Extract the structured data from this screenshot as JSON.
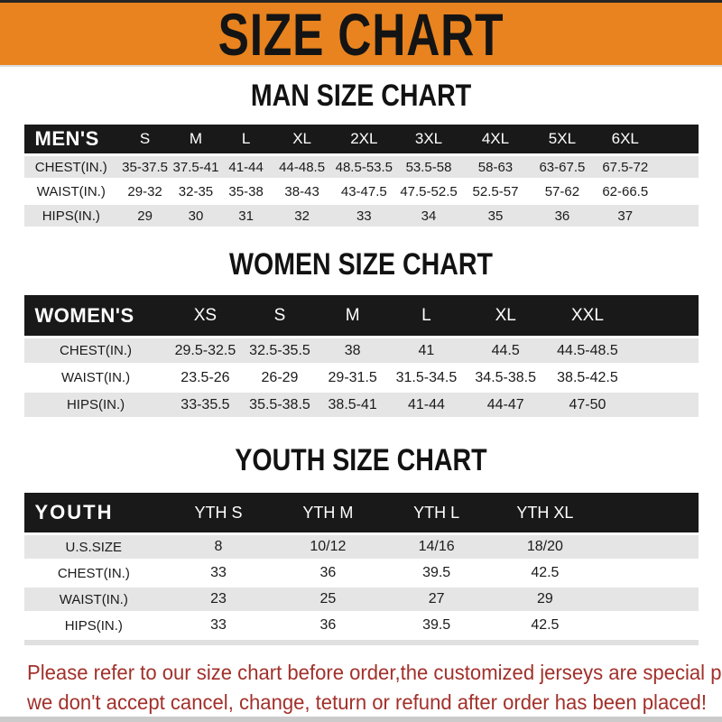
{
  "banner": {
    "title": "SIZE CHART"
  },
  "sections": [
    {
      "heading": "MAN SIZE CHART",
      "header_label": "MEN'S",
      "columns": [
        "S",
        "M",
        "L",
        "XL",
        "2XL",
        "3XL",
        "4XL",
        "5XL",
        "6XL"
      ],
      "rows": [
        {
          "label": "CHEST(IN.)",
          "values": [
            "35-37.5",
            "37.5-41",
            "41-44",
            "44-48.5",
            "48.5-53.5",
            "53.5-58",
            "58-63",
            "63-67.5",
            "67.5-72"
          ]
        },
        {
          "label": "WAIST(IN.)",
          "values": [
            "29-32",
            "32-35",
            "35-38",
            "38-43",
            "43-47.5",
            "47.5-52.5",
            "52.5-57",
            "57-62",
            "62-66.5"
          ]
        },
        {
          "label": "HIPS(IN.)",
          "values": [
            "29",
            "30",
            "31",
            "32",
            "33",
            "34",
            "35",
            "36",
            "37"
          ]
        }
      ]
    },
    {
      "heading": "WOMEN SIZE CHART",
      "header_label": "WOMEN'S",
      "columns": [
        "XS",
        "S",
        "M",
        "L",
        "XL",
        "XXL"
      ],
      "rows": [
        {
          "label": "CHEST(IN.)",
          "values": [
            "29.5-32.5",
            "32.5-35.5",
            "38",
            "41",
            "44.5",
            "44.5-48.5"
          ]
        },
        {
          "label": "WAIST(IN.)",
          "values": [
            "23.5-26",
            "26-29",
            "29-31.5",
            "31.5-34.5",
            "34.5-38.5",
            "38.5-42.5"
          ]
        },
        {
          "label": "HIPS(IN.)",
          "values": [
            "33-35.5",
            "35.5-38.5",
            "38.5-41",
            "41-44",
            "44-47",
            "47-50"
          ]
        }
      ]
    },
    {
      "heading": "YOUTH SIZE CHART",
      "header_label": "YOUTH",
      "columns": [
        "YTH S",
        "YTH M",
        "YTH L",
        "YTH XL"
      ],
      "rows": [
        {
          "label": "U.S.SIZE",
          "values": [
            "8",
            "10/12",
            "14/16",
            "18/20"
          ]
        },
        {
          "label": "CHEST(IN.)",
          "values": [
            "33",
            "36",
            "39.5",
            "42.5"
          ]
        },
        {
          "label": "WAIST(IN.)",
          "values": [
            "23",
            "25",
            "27",
            "29"
          ]
        },
        {
          "label": "HIPS(IN.)",
          "values": [
            "33",
            "36",
            "39.5",
            "42.5"
          ]
        }
      ]
    }
  ],
  "footer": {
    "line1": "Please refer to our size chart before order,the customized jerseys are special products,",
    "line2": "we don't accept cancel, change, teturn or refund after order has been placed!"
  },
  "colors": {
    "banner_bg": "#E8831F",
    "header_bar": "#191919",
    "row_stripe": "#E5E5E5",
    "disclaimer_red": "#A2302A"
  }
}
